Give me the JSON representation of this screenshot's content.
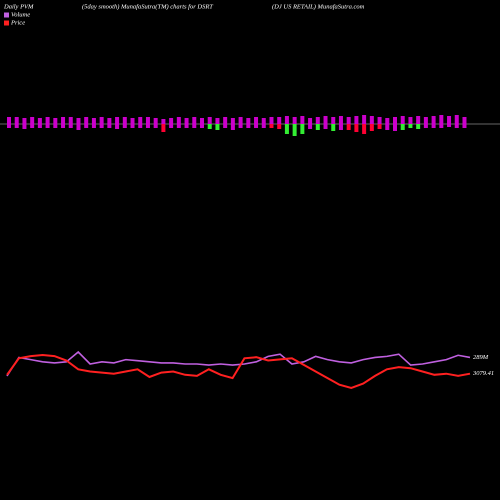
{
  "chart_data": {
    "type": "pvm",
    "title": "Daily PVM",
    "subtitle": "(5day smooth) MunafaSutra(TM) charts for DSRT",
    "source": "(DJ US RETAIL) MunafaSutra.com",
    "bars": {
      "up_color": "#cc00cc",
      "up": [
        7,
        7,
        6,
        7,
        6,
        7,
        6,
        7,
        7,
        6,
        7,
        6,
        7,
        6,
        7,
        7,
        6,
        7,
        7,
        6,
        5,
        6,
        7,
        6,
        7,
        6,
        7,
        6,
        7,
        6,
        7,
        6,
        7,
        6,
        7,
        7,
        8,
        7,
        8,
        6,
        7,
        8,
        7,
        8,
        7,
        8,
        9,
        8,
        7,
        6,
        7,
        8,
        7,
        8,
        7,
        8,
        9,
        8,
        9,
        7
      ],
      "down": [
        4,
        4,
        5,
        4,
        4,
        4,
        4,
        4,
        4,
        6,
        4,
        4,
        4,
        4,
        5,
        4,
        4,
        4,
        4,
        4,
        8,
        4,
        4,
        4,
        4,
        4,
        5,
        6,
        4,
        6,
        4,
        4,
        4,
        4,
        4,
        5,
        10,
        12,
        10,
        5,
        6,
        5,
        7,
        6,
        6,
        8,
        10,
        7,
        5,
        6,
        7,
        6,
        4,
        5,
        4,
        4,
        4,
        3,
        4,
        4
      ],
      "down_colors": [
        "#cc00cc",
        "#cc00cc",
        "#cc00cc",
        "#cc00cc",
        "#cc00cc",
        "#cc00cc",
        "#cc00cc",
        "#cc00cc",
        "#cc00cc",
        "#cc00cc",
        "#cc00cc",
        "#cc00cc",
        "#cc00cc",
        "#cc00cc",
        "#cc00cc",
        "#cc00cc",
        "#cc00cc",
        "#cc00cc",
        "#cc00cc",
        "#cc00cc",
        "#ff0033",
        "#cc00cc",
        "#cc00cc",
        "#cc00cc",
        "#cc00cc",
        "#cc00cc",
        "#33ee33",
        "#33ee33",
        "#cc00cc",
        "#cc00cc",
        "#cc00cc",
        "#cc00cc",
        "#cc00cc",
        "#cc00cc",
        "#ff0033",
        "#ff0033",
        "#33ee33",
        "#33ee33",
        "#33ee33",
        "#cc00cc",
        "#33ee33",
        "#cc00cc",
        "#33ee33",
        "#cc00cc",
        "#ff0033",
        "#ff0033",
        "#ff0033",
        "#ff0033",
        "#ff0033",
        "#cc00cc",
        "#cc00cc",
        "#33ee33",
        "#33ee33",
        "#33ee33",
        "#cc00cc",
        "#cc00cc",
        "#cc00cc",
        "#cc00cc",
        "#cc00cc",
        "#cc00cc"
      ]
    },
    "series": [
      {
        "name": "Volume",
        "color": "#c060e0",
        "values": [
          187000000,
          289000000,
          277000000,
          265000000,
          259000000,
          265000000,
          319000000,
          253000000,
          265000000,
          259000000,
          277000000,
          271000000,
          265000000,
          259000000,
          259000000,
          253000000,
          253000000,
          247000000,
          253000000,
          247000000,
          253000000,
          265000000,
          295000000,
          307000000,
          253000000,
          265000000,
          295000000,
          277000000,
          265000000,
          259000000,
          277000000,
          289000000,
          295000000,
          307000000,
          247000000,
          253000000,
          265000000,
          277000000,
          301000000,
          289000000
        ],
        "value_labels": [
          null,
          null,
          null,
          null,
          null,
          null,
          null,
          null,
          null,
          null,
          null,
          null,
          null,
          null,
          null,
          null,
          null,
          null,
          null,
          null,
          null,
          null,
          null,
          null,
          null,
          null,
          null,
          null,
          null,
          null,
          null,
          null,
          null,
          null,
          null,
          null,
          null,
          null,
          null,
          "289M"
        ]
      },
      {
        "name": "Price",
        "color": "#ff2020",
        "values": [
          3074.61,
          3146.61,
          3156.21,
          3161.01,
          3156.21,
          3137.01,
          3098.61,
          3089.01,
          3084.21,
          3079.41,
          3089.01,
          3098.61,
          3065.01,
          3084.21,
          3089.01,
          3074.61,
          3069.81,
          3098.61,
          3074.61,
          3060.21,
          3146.61,
          3151.41,
          3137.01,
          3141.81,
          3146.61,
          3117.81,
          3089.01,
          3060.21,
          3031.41,
          3017.01,
          3036.21,
          3069.81,
          3098.61,
          3108.21,
          3103.41,
          3089.01,
          3074.61,
          3079.41,
          3069.81,
          3079.41
        ]
      }
    ]
  }
}
